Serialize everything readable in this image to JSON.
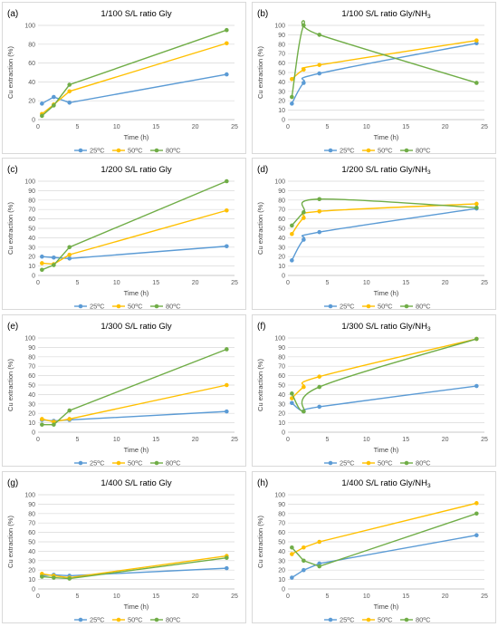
{
  "chart_data": [
    {
      "type": "line",
      "panel": "(a)",
      "title": "1/100  S/L ratio Gly",
      "title_sub": "",
      "xlabel": "Time (h)",
      "ylabel": "Cu extraction (%)",
      "xlim": [
        0,
        25
      ],
      "ylim": [
        0,
        100
      ],
      "xticks": [
        0,
        5,
        10,
        15,
        20,
        25
      ],
      "yticks": [
        0,
        20,
        40,
        60,
        80,
        100
      ],
      "grid": true,
      "legend": "bottom",
      "smooth": false,
      "x": [
        0.5,
        2,
        4,
        24
      ],
      "series": [
        {
          "name": "25ºC",
          "color": "#5b9bd5",
          "values": [
            17,
            24,
            18,
            48
          ]
        },
        {
          "name": "50ºC",
          "color": "#ffc000",
          "values": [
            6,
            16,
            30,
            81
          ]
        },
        {
          "name": "80ºC",
          "color": "#70ad47",
          "values": [
            4,
            15,
            37,
            95
          ]
        }
      ]
    },
    {
      "type": "line",
      "panel": "(b)",
      "title": "1/100  S/L ratio Gly/NH",
      "title_sub": "3",
      "xlabel": "Time (h)",
      "ylabel": "Cu extraction (%)",
      "xlim": [
        0,
        25
      ],
      "ylim": [
        0,
        100
      ],
      "xticks": [
        0,
        5,
        10,
        15,
        20,
        25
      ],
      "yticks": [
        0,
        10,
        20,
        30,
        40,
        50,
        60,
        70,
        80,
        90,
        100
      ],
      "grid": true,
      "legend": "bottom",
      "smooth": true,
      "x": [
        0.5,
        2,
        4,
        24
      ],
      "series": [
        {
          "name": "25ºC",
          "color": "#5b9bd5",
          "values": [
            17,
            39,
            49,
            81
          ]
        },
        {
          "name": "50ºC",
          "color": "#ffc000",
          "values": [
            43,
            53,
            58,
            84
          ]
        },
        {
          "name": "80ºC",
          "color": "#70ad47",
          "values": [
            24,
            100,
            90,
            39
          ]
        }
      ]
    },
    {
      "type": "line",
      "panel": "(c)",
      "title": "1/200  S/L ratio Gly",
      "title_sub": "",
      "xlabel": "Time (h)",
      "ylabel": "Cu extraction (%)",
      "xlim": [
        0,
        25
      ],
      "ylim": [
        0,
        100
      ],
      "xticks": [
        0,
        5,
        10,
        15,
        20,
        25
      ],
      "yticks": [
        0,
        10,
        20,
        30,
        40,
        50,
        60,
        70,
        80,
        90,
        100
      ],
      "grid": true,
      "legend": "bottom",
      "smooth": false,
      "x": [
        0.5,
        2,
        4,
        24
      ],
      "series": [
        {
          "name": "25ºC",
          "color": "#5b9bd5",
          "values": [
            20,
            19,
            18,
            31
          ]
        },
        {
          "name": "50ºC",
          "color": "#ffc000",
          "values": [
            13,
            12,
            22,
            69
          ]
        },
        {
          "name": "80ºC",
          "color": "#70ad47",
          "values": [
            6,
            11,
            30,
            100
          ]
        }
      ]
    },
    {
      "type": "line",
      "panel": "(d)",
      "title": "1/200  S/L ratio Gly/NH",
      "title_sub": "3",
      "xlabel": "Time (h)",
      "ylabel": "Cu extraction (%)",
      "xlim": [
        0,
        25
      ],
      "ylim": [
        0,
        100
      ],
      "xticks": [
        0,
        5,
        10,
        15,
        20,
        25
      ],
      "yticks": [
        0,
        10,
        20,
        30,
        40,
        50,
        60,
        70,
        80,
        90,
        100
      ],
      "grid": true,
      "legend": "bottom",
      "smooth": true,
      "x": [
        0.5,
        2,
        4,
        24
      ],
      "series": [
        {
          "name": "25ºC",
          "color": "#5b9bd5",
          "values": [
            16,
            38,
            46,
            71
          ]
        },
        {
          "name": "50ºC",
          "color": "#ffc000",
          "values": [
            44,
            61,
            68,
            76
          ]
        },
        {
          "name": "80ºC",
          "color": "#70ad47",
          "values": [
            53,
            67,
            81,
            72
          ]
        }
      ]
    },
    {
      "type": "line",
      "panel": "(e)",
      "title": "1/300  S/L ratio Gly",
      "title_sub": "",
      "xlabel": "Time (h)",
      "ylabel": "Cu extraction (%)",
      "xlim": [
        0,
        25
      ],
      "ylim": [
        0,
        100
      ],
      "xticks": [
        0,
        5,
        10,
        15,
        20,
        25
      ],
      "yticks": [
        0,
        10,
        20,
        30,
        40,
        50,
        60,
        70,
        80,
        90,
        100
      ],
      "grid": true,
      "legend": "bottom",
      "smooth": false,
      "x": [
        0.5,
        2,
        4,
        24
      ],
      "series": [
        {
          "name": "25ºC",
          "color": "#5b9bd5",
          "values": [
            13,
            12,
            13,
            22
          ]
        },
        {
          "name": "50ºC",
          "color": "#ffc000",
          "values": [
            14,
            11,
            14,
            50
          ]
        },
        {
          "name": "80ºC",
          "color": "#70ad47",
          "values": [
            8,
            8,
            23,
            88
          ]
        }
      ]
    },
    {
      "type": "line",
      "panel": "(f)",
      "title": "1/300  S/L ratio Gly/NH",
      "title_sub": "3",
      "xlabel": "Time (h)",
      "ylabel": "Cu extraction (%)",
      "xlim": [
        0,
        25
      ],
      "ylim": [
        0,
        100
      ],
      "xticks": [
        0,
        5,
        10,
        15,
        20,
        25
      ],
      "yticks": [
        0,
        10,
        20,
        30,
        40,
        50,
        60,
        70,
        80,
        90,
        100
      ],
      "grid": true,
      "legend": "bottom",
      "smooth": true,
      "x": [
        0.5,
        2,
        4,
        24
      ],
      "series": [
        {
          "name": "25ºC",
          "color": "#5b9bd5",
          "values": [
            31,
            22,
            27,
            49
          ]
        },
        {
          "name": "50ºC",
          "color": "#ffc000",
          "values": [
            36,
            48,
            59,
            99
          ]
        },
        {
          "name": "80ºC",
          "color": "#70ad47",
          "values": [
            41,
            22,
            48,
            99
          ]
        }
      ]
    },
    {
      "type": "line",
      "panel": "(g)",
      "title": "1/400 S/L ratio  Gly",
      "title_sub": "",
      "xlabel": "Time (h)",
      "ylabel": "Cu extraction (%)",
      "xlim": [
        0,
        25
      ],
      "ylim": [
        0,
        100
      ],
      "xticks": [
        0,
        5,
        10,
        15,
        20,
        25
      ],
      "yticks": [
        0,
        10,
        20,
        30,
        40,
        50,
        60,
        70,
        80,
        90,
        100
      ],
      "grid": true,
      "legend": "bottom",
      "smooth": false,
      "x": [
        0.5,
        2,
        4,
        24
      ],
      "series": [
        {
          "name": "25ºC",
          "color": "#5b9bd5",
          "values": [
            14,
            15,
            14,
            22
          ]
        },
        {
          "name": "50ºC",
          "color": "#ffc000",
          "values": [
            16,
            14,
            12,
            35
          ]
        },
        {
          "name": "80ºC",
          "color": "#70ad47",
          "values": [
            13,
            12,
            11,
            33
          ]
        }
      ]
    },
    {
      "type": "line",
      "panel": "(h)",
      "title": "1/400 S/L ratio  Gly/NH",
      "title_sub": "3",
      "xlabel": "Time (h)",
      "ylabel": "Cu extraction (%)",
      "xlim": [
        0,
        25
      ],
      "ylim": [
        0,
        100
      ],
      "xticks": [
        0,
        5,
        10,
        15,
        20,
        25
      ],
      "yticks": [
        0,
        10,
        20,
        30,
        40,
        50,
        60,
        70,
        80,
        90,
        100
      ],
      "grid": true,
      "legend": "bottom",
      "smooth": false,
      "x": [
        0.5,
        2,
        4,
        24
      ],
      "series": [
        {
          "name": "25ºC",
          "color": "#5b9bd5",
          "values": [
            12,
            20,
            27,
            57
          ]
        },
        {
          "name": "50ºC",
          "color": "#ffc000",
          "values": [
            37,
            44,
            50,
            91
          ]
        },
        {
          "name": "80ºC",
          "color": "#70ad47",
          "values": [
            44,
            30,
            24,
            80
          ]
        }
      ]
    }
  ]
}
